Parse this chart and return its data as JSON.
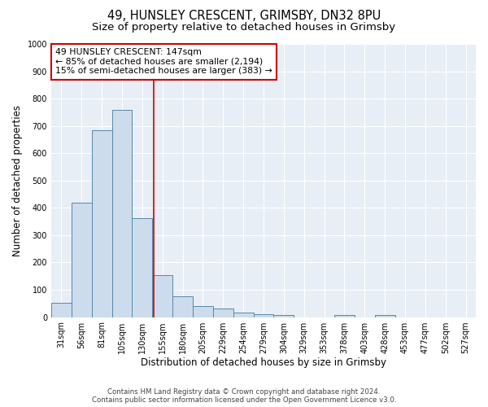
{
  "title": "49, HUNSLEY CRESCENT, GRIMSBY, DN32 8PU",
  "subtitle": "Size of property relative to detached houses in Grimsby",
  "xlabel": "Distribution of detached houses by size in Grimsby",
  "ylabel": "Number of detached properties",
  "bar_labels": [
    "31sqm",
    "56sqm",
    "81sqm",
    "105sqm",
    "130sqm",
    "155sqm",
    "180sqm",
    "205sqm",
    "229sqm",
    "254sqm",
    "279sqm",
    "304sqm",
    "329sqm",
    "353sqm",
    "378sqm",
    "403sqm",
    "428sqm",
    "453sqm",
    "477sqm",
    "502sqm",
    "527sqm"
  ],
  "bar_values": [
    52,
    420,
    685,
    758,
    363,
    153,
    75,
    40,
    32,
    18,
    10,
    8,
    0,
    0,
    8,
    0,
    8,
    0,
    0,
    0,
    0
  ],
  "bar_color": "#ccdcec",
  "bar_edge_color": "#5588aa",
  "bar_edge_width": 0.7,
  "red_line_x": 4.58,
  "red_line_color": "#cc0000",
  "annotation_text": "49 HUNSLEY CRESCENT: 147sqm\n← 85% of detached houses are smaller (2,194)\n15% of semi-detached houses are larger (383) →",
  "annotation_box_color": "#ffffff",
  "annotation_box_edge_color": "#cc0000",
  "ylim": [
    0,
    1000
  ],
  "yticks": [
    0,
    100,
    200,
    300,
    400,
    500,
    600,
    700,
    800,
    900,
    1000
  ],
  "background_color": "#e8eef5",
  "grid_color": "#ffffff",
  "title_fontsize": 10.5,
  "subtitle_fontsize": 9.5,
  "label_fontsize": 8.5,
  "tick_fontsize": 7,
  "annotation_fontsize": 7.8,
  "footer_line1": "Contains HM Land Registry data © Crown copyright and database right 2024.",
  "footer_line2": "Contains public sector information licensed under the Open Government Licence v3.0."
}
